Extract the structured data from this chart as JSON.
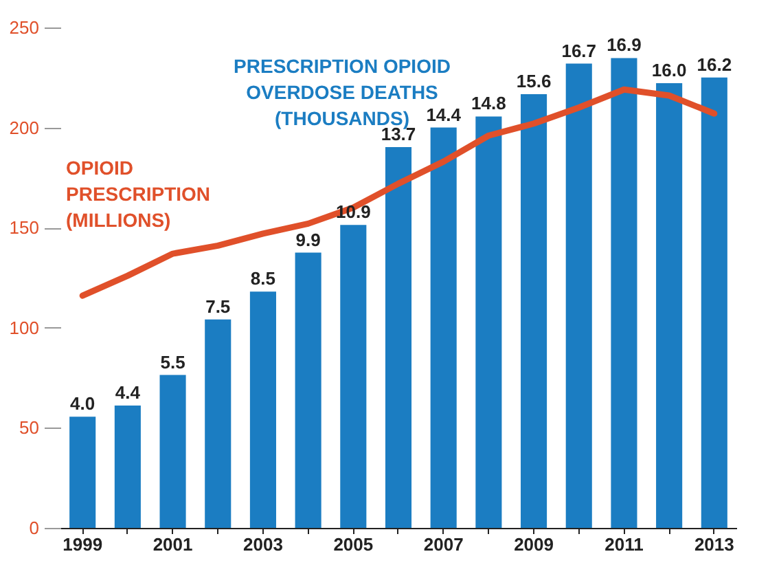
{
  "chart_data": {
    "type": "bar",
    "categories": [
      "1999",
      null,
      "2001",
      null,
      "2003",
      null,
      "2005",
      null,
      "2007",
      null,
      "2009",
      null,
      "2011",
      null,
      "2013"
    ],
    "series": [
      {
        "name": "PRESCRIPTION OPIOID OVERDOSE DEATHS (THOUSANDS)",
        "axis": "y2",
        "color": "#1b7dc2",
        "values": [
          4.0,
          4.4,
          5.5,
          7.5,
          8.5,
          9.9,
          10.9,
          13.7,
          14.4,
          14.8,
          15.6,
          16.7,
          16.9,
          16.0,
          16.2
        ],
        "value_labels": [
          "4.0",
          "4.4",
          "5.5",
          "7.5",
          "8.5",
          "9.9",
          "10.9",
          "13.7",
          "14.4",
          "14.8",
          "15.6",
          "16.7",
          "16.9",
          "16.0",
          "16.2"
        ]
      },
      {
        "name": "OPIOID PRESCRIPTION (MILLIONS)",
        "type": "line",
        "color": "#e0502a",
        "values": [
          116,
          126,
          137,
          141,
          147,
          152,
          160,
          172,
          183,
          196,
          202,
          210,
          219,
          216,
          207
        ]
      }
    ],
    "ylim": [
      0,
      250
    ],
    "yticks": [
      0,
      50,
      100,
      150,
      200,
      250
    ],
    "grid": false,
    "legend": false,
    "marker": "none",
    "line_style": "solid"
  }
}
